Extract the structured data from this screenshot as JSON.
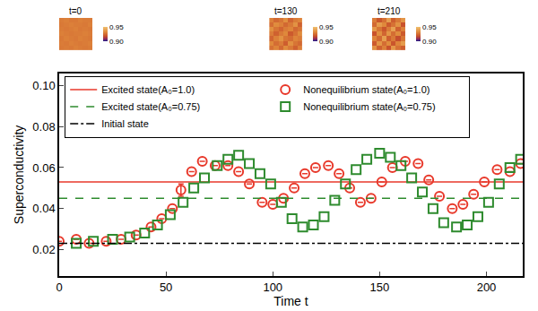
{
  "chart_data": [
    {
      "type": "scatter",
      "xlabel": "Time t",
      "ylabel": "Superconductivity",
      "xlim": [
        0,
        217
      ],
      "ylim": [
        0.007,
        0.106
      ],
      "xticks": [
        0,
        50,
        100,
        150,
        200
      ],
      "yticks": [
        0.02,
        0.04,
        0.06,
        0.08,
        {
          "value": 0.1,
          "label": "0.10"
        }
      ],
      "grid": false,
      "legend": "upper left",
      "series": [
        {
          "name": "Excited state(A₀=1.0)",
          "type": "hline",
          "value": 0.053,
          "color": "#e8392b",
          "line_style": "solid"
        },
        {
          "name": "Nonequilibrium state(A₀=1.0)",
          "type": "scatter",
          "marker": "circle-open",
          "color": "#e8392b",
          "x": [
            0,
            8,
            14,
            22,
            29,
            36,
            43,
            48,
            53,
            57,
            62,
            67,
            73,
            79,
            84,
            89,
            95,
            100,
            105,
            110,
            115,
            120,
            126,
            131,
            136,
            141,
            146,
            151,
            156,
            162,
            168,
            173,
            178,
            184,
            189,
            194,
            199,
            205,
            211,
            216
          ],
          "values": [
            0.024,
            0.025,
            0.023,
            0.024,
            0.025,
            0.027,
            0.031,
            0.035,
            0.04,
            0.049,
            0.058,
            0.063,
            0.061,
            0.061,
            0.058,
            0.052,
            0.043,
            0.042,
            0.045,
            0.05,
            0.057,
            0.06,
            0.061,
            0.057,
            0.05,
            0.043,
            0.045,
            0.053,
            0.06,
            0.063,
            0.062,
            0.054,
            0.046,
            0.04,
            0.042,
            0.047,
            0.053,
            0.059,
            0.058,
            0.062
          ],
          "errors": [
            null,
            null,
            null,
            null,
            null,
            null,
            null,
            null,
            null,
            0.003,
            null,
            null,
            null,
            null,
            null,
            null,
            null,
            null,
            null,
            null,
            null,
            null,
            null,
            null,
            null,
            null,
            null,
            null,
            null,
            null,
            null,
            null,
            null,
            null,
            null,
            null,
            null,
            null,
            null,
            null
          ]
        },
        {
          "name": "Excited state(A₀=0.75)",
          "type": "hline",
          "value": 0.045,
          "color": "#2e8b2e",
          "line_style": "dash"
        },
        {
          "name": "Nonequilibrium state(A₀=0.75)",
          "type": "scatter",
          "marker": "square-open",
          "color": "#2e8b2e",
          "x": [
            8,
            16,
            25,
            33,
            40,
            46,
            52,
            58,
            63,
            68,
            74,
            79,
            84,
            89,
            94,
            99,
            104,
            109,
            114,
            119,
            124,
            129,
            134,
            139,
            144,
            150,
            155,
            160,
            165,
            170,
            175,
            180,
            186,
            191,
            196,
            201,
            206,
            211,
            216
          ],
          "values": [
            0.023,
            0.024,
            0.025,
            0.026,
            0.028,
            0.032,
            0.037,
            0.043,
            0.05,
            0.055,
            0.061,
            0.064,
            0.066,
            0.062,
            0.057,
            0.052,
            0.043,
            0.035,
            0.031,
            0.032,
            0.036,
            0.044,
            0.052,
            0.059,
            0.064,
            0.067,
            0.065,
            0.061,
            0.055,
            0.048,
            0.04,
            0.033,
            0.031,
            0.032,
            0.036,
            0.043,
            0.052,
            0.06,
            0.064
          ]
        },
        {
          "name": "Initial state",
          "type": "hline",
          "value": 0.023,
          "color": "#000000",
          "line_style": "dashdot"
        }
      ]
    },
    {
      "type": "heatmap",
      "title": "t=0",
      "tick_labels": false,
      "zlim": [
        0.9,
        0.95
      ],
      "zticks": [
        {
          "value": 0.9,
          "label": "0.90"
        },
        {
          "value": 0.95,
          "label": "0.95"
        }
      ],
      "cells": [
        [
          0.928,
          0.929,
          0.928,
          0.93,
          0.929,
          0.928,
          0.929
        ],
        [
          0.929,
          0.928,
          0.93,
          0.929,
          0.928,
          0.929,
          0.93
        ],
        [
          0.928,
          0.93,
          0.929,
          0.928,
          0.93,
          0.929,
          0.928
        ],
        [
          0.93,
          0.929,
          0.928,
          0.929,
          0.929,
          0.93,
          0.929
        ],
        [
          0.929,
          0.928,
          0.929,
          0.93,
          0.928,
          0.929,
          0.928
        ],
        [
          0.928,
          0.929,
          0.93,
          0.929,
          0.929,
          0.928,
          0.93
        ],
        [
          0.929,
          0.93,
          0.928,
          0.928,
          0.93,
          0.929,
          0.929
        ]
      ]
    },
    {
      "type": "heatmap",
      "title": "t=130",
      "tick_labels": false,
      "zlim": [
        0.9,
        0.95
      ],
      "zticks": [
        {
          "value": 0.9,
          "label": "0.90"
        },
        {
          "value": 0.95,
          "label": "0.95"
        }
      ],
      "cells": [
        [
          0.926,
          0.931,
          0.924,
          0.933,
          0.928,
          0.922,
          0.93
        ],
        [
          0.932,
          0.925,
          0.929,
          0.921,
          0.934,
          0.927,
          0.924
        ],
        [
          0.923,
          0.93,
          0.935,
          0.927,
          0.925,
          0.931,
          0.929
        ],
        [
          0.929,
          0.922,
          0.928,
          0.932,
          0.92,
          0.926,
          0.933
        ],
        [
          0.934,
          0.927,
          0.923,
          0.929,
          0.931,
          0.924,
          0.927
        ],
        [
          0.925,
          0.933,
          0.93,
          0.924,
          0.928,
          0.935,
          0.922
        ],
        [
          0.93,
          0.924,
          0.927,
          0.934,
          0.923,
          0.929,
          0.931
        ]
      ]
    },
    {
      "type": "heatmap",
      "title": "t=210",
      "tick_labels": false,
      "zlim": [
        0.9,
        0.95
      ],
      "zticks": [
        {
          "value": 0.9,
          "label": "0.90"
        },
        {
          "value": 0.95,
          "label": "0.95"
        }
      ],
      "cells": [
        [
          0.935,
          0.922,
          0.93,
          0.918,
          0.937,
          0.926,
          0.921
        ],
        [
          0.92,
          0.936,
          0.925,
          0.933,
          0.919,
          0.931,
          0.938
        ],
        [
          0.931,
          0.924,
          0.939,
          0.921,
          0.928,
          0.917,
          0.927
        ],
        [
          0.918,
          0.934,
          0.923,
          0.936,
          0.925,
          0.933,
          0.92
        ],
        [
          0.937,
          0.927,
          0.919,
          0.929,
          0.94,
          0.922,
          0.93
        ],
        [
          0.924,
          0.938,
          0.932,
          0.92,
          0.926,
          0.935,
          0.918
        ],
        [
          0.929,
          0.919,
          0.926,
          0.939,
          0.921,
          0.928,
          0.936
        ]
      ]
    }
  ]
}
